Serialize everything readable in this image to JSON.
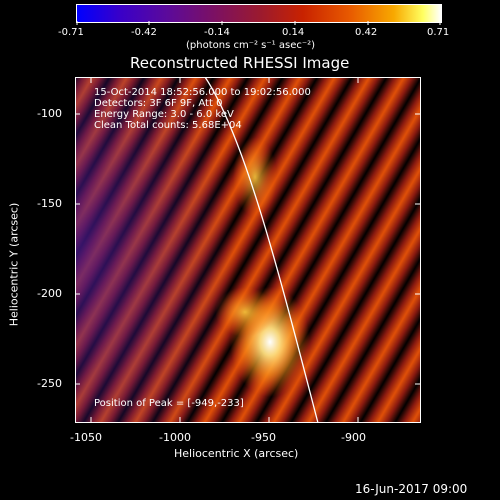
{
  "colorbar": {
    "ticks": [
      "-0.71",
      "-0.42",
      "-0.14",
      "0.14",
      "0.42",
      "0.71"
    ],
    "unit_label": "(photons cm⁻² s⁻¹ asec⁻²)",
    "range": [
      -0.71,
      0.71
    ]
  },
  "plot": {
    "title": "Reconstructed RHESSI Image",
    "xlabel": "Heliocentric X (arcsec)",
    "ylabel": "Heliocentric Y (arcsec)",
    "xticks": [
      "-1050",
      "-1000",
      "-950",
      "-900"
    ],
    "yticks": [
      "-100",
      "-150",
      "-200",
      "-250"
    ],
    "xlim": [
      -1070,
      -872
    ],
    "ylim": [
      -270,
      -77
    ],
    "annotations": [
      "15-Oct-2014 18:52:56.000 to 19:02:56.000",
      "Detectors: 3F 6F 9F, Att 0",
      "Energy Range: 3.0 - 6.0 keV",
      "Clean    Total counts: 5.68E+04"
    ],
    "peak_label": "Position of Peak = [-949,-233]",
    "peak": [
      -949,
      -233
    ]
  },
  "footer": {
    "timestamp": "16-Jun-2017 09:00"
  }
}
